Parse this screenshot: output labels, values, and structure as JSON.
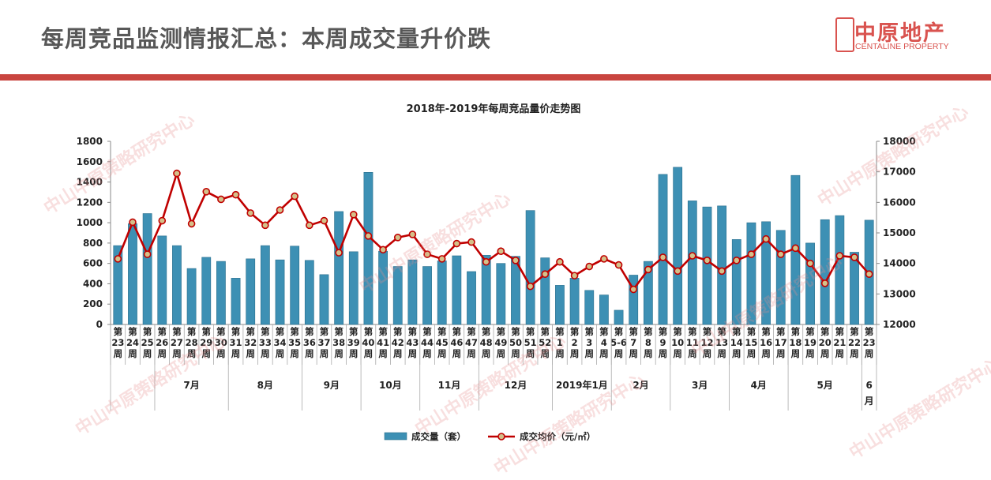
{
  "header": {
    "title": "每周竞品监测情报汇总：本周成交量升价跌",
    "logo_cn": "中原地产",
    "logo_en": "CENTALINE PROPERTY"
  },
  "watermark": "中山中原策略研究中心",
  "colors": {
    "bar": "#3d90b4",
    "line": "#c00000",
    "marker": "#d4c08a",
    "accent": "#c9453f"
  },
  "chart_data": {
    "type": "bar",
    "title": "2018年-2019年每周竞品量价走势图",
    "categories": [
      "第23周",
      "第24周",
      "第25周",
      "第26周",
      "第27周",
      "第28周",
      "第29周",
      "第30周",
      "第31周",
      "第32周",
      "第33周",
      "第34周",
      "第35周",
      "第36周",
      "第37周",
      "第38周",
      "第39周",
      "第40周",
      "第41周",
      "第42周",
      "第43周",
      "第44周",
      "第45周",
      "第46周",
      "第47周",
      "第48周",
      "第49周",
      "第50周",
      "第51周",
      "第52周",
      "第1周",
      "第2周",
      "第3周",
      "第4周",
      "第5-6周",
      "第7周",
      "第8周",
      "第9周",
      "第10周",
      "第11周",
      "第12周",
      "第13周",
      "第14周",
      "第15周",
      "第16周",
      "第17周",
      "第18周",
      "第19周",
      "第20周",
      "第21周",
      "第22周",
      "第23周"
    ],
    "months": [
      {
        "label": "",
        "span": 3
      },
      {
        "label": "7月",
        "span": 5
      },
      {
        "label": "8月",
        "span": 5
      },
      {
        "label": "9月",
        "span": 4
      },
      {
        "label": "10月",
        "span": 4
      },
      {
        "label": "11月",
        "span": 4
      },
      {
        "label": "12月",
        "span": 5
      },
      {
        "label": "2019年1月",
        "span": 4
      },
      {
        "label": "2月",
        "span": 4
      },
      {
        "label": "3月",
        "span": 4
      },
      {
        "label": "4月",
        "span": 4
      },
      {
        "label": "5月",
        "span": 5
      },
      {
        "label": "6月",
        "span": 1
      }
    ],
    "series": [
      {
        "name": "成交量（套）",
        "type": "bar",
        "axis": "left",
        "values": [
          775,
          990,
          1090,
          870,
          775,
          550,
          660,
          620,
          455,
          645,
          775,
          635,
          770,
          630,
          490,
          1110,
          715,
          1495,
          720,
          570,
          635,
          570,
          625,
          675,
          520,
          680,
          600,
          670,
          1120,
          655,
          385,
          455,
          335,
          290,
          140,
          485,
          620,
          1475,
          1545,
          1215,
          1155,
          1165,
          835,
          1000,
          1010,
          925,
          1465,
          800,
          1030,
          1070,
          710,
          1025
        ]
      },
      {
        "name": "成交均价（元/㎡）",
        "type": "line",
        "axis": "right",
        "values": [
          14150,
          15350,
          14300,
          15400,
          16950,
          15300,
          16350,
          16100,
          16250,
          15650,
          15250,
          15750,
          16200,
          15250,
          15400,
          14350,
          15600,
          14900,
          14450,
          14850,
          14950,
          14300,
          14150,
          14650,
          14700,
          14050,
          14400,
          14100,
          13250,
          13650,
          14050,
          13600,
          13900,
          14150,
          13950,
          13150,
          13800,
          14200,
          13750,
          14250,
          14100,
          13750,
          14100,
          14300,
          14800,
          14300,
          14500,
          14000,
          13350,
          14250,
          14200,
          13650
        ]
      }
    ],
    "y_left": {
      "min": 0,
      "max": 1800,
      "ticks": [
        0,
        200,
        400,
        600,
        800,
        1000,
        1200,
        1400,
        1600,
        1800
      ]
    },
    "y_right": {
      "min": 12000,
      "max": 18000,
      "ticks": [
        12000,
        13000,
        14000,
        15000,
        16000,
        17000,
        18000
      ]
    },
    "legend_position": "bottom",
    "grid": false
  }
}
